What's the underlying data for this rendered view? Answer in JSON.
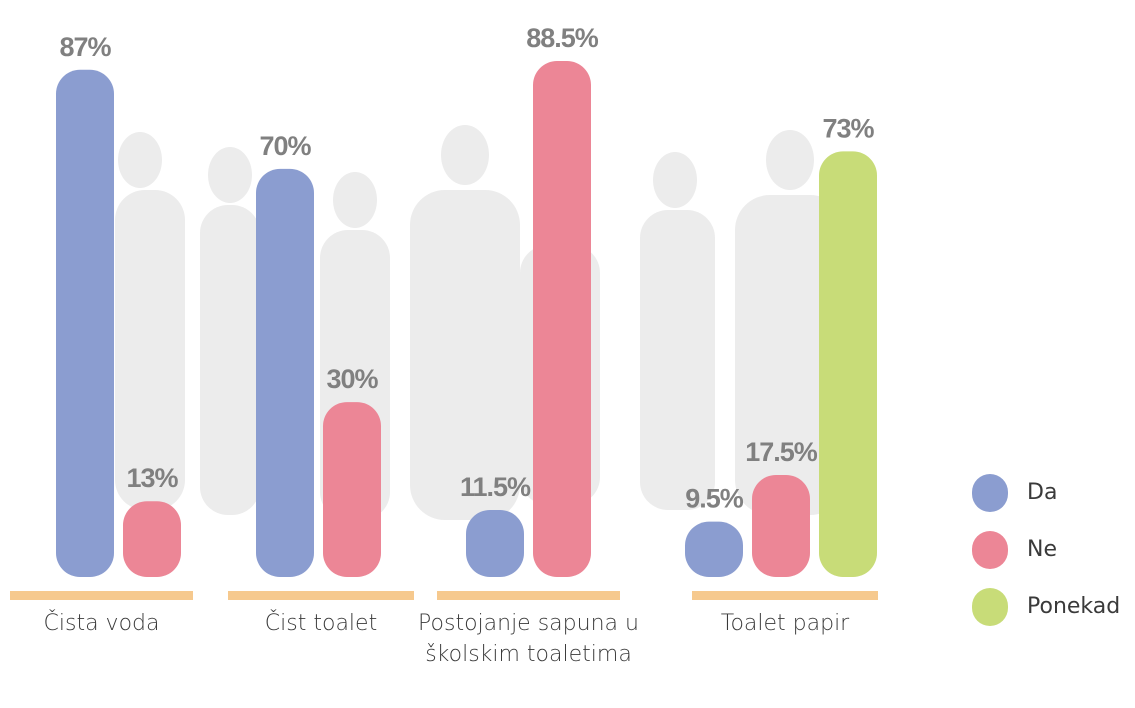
{
  "chart_data": {
    "type": "bar",
    "categories": [
      "Čista voda",
      "Čist toalet",
      "Postojanje sapuna u školskim toaletima",
      "Toalet papir"
    ],
    "series": [
      {
        "name": "Da",
        "color": "#8b9dd0",
        "values": [
          87,
          70,
          11.5,
          9.5
        ],
        "value_labels": [
          "87%",
          "70%",
          "11.5%",
          "9.5%"
        ]
      },
      {
        "name": "Ne",
        "color": "#ec8696",
        "values": [
          13,
          30,
          88.5,
          17.5
        ],
        "value_labels": [
          "13%",
          "30%",
          "88.5%",
          "17.5%"
        ]
      },
      {
        "name": "Ponekad",
        "color": "#c8dc78",
        "values": [
          null,
          null,
          null,
          73
        ],
        "value_labels": [
          null,
          null,
          null,
          "73%"
        ]
      }
    ],
    "legend": "right"
  }
}
